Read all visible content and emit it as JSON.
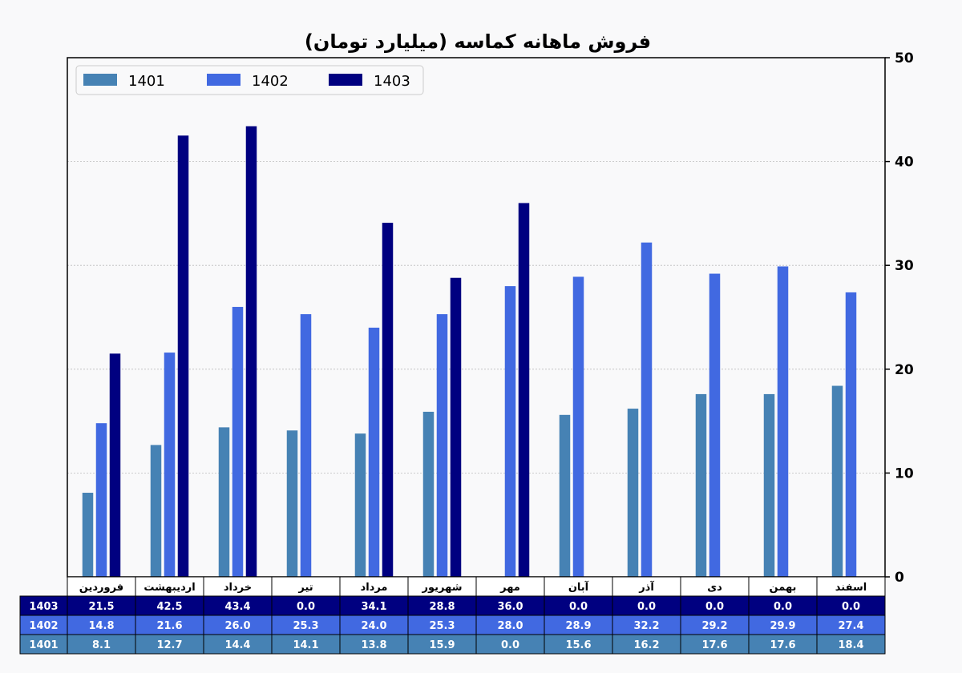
{
  "chart_data": {
    "type": "bar",
    "title": "فروش ماهانه کماسه (میلیارد تومان)",
    "categories": [
      "فروردین",
      "اردیبهشت",
      "خرداد",
      "تیر",
      "مرداد",
      "شهریور",
      "مهر",
      "آبان",
      "آذر",
      "دی",
      "بهمن",
      "اسفند"
    ],
    "series": [
      {
        "name": "1401",
        "color": "#4682b4",
        "values": [
          8.1,
          12.7,
          14.4,
          14.1,
          13.8,
          15.9,
          0.0,
          15.6,
          16.2,
          17.6,
          17.6,
          18.4
        ]
      },
      {
        "name": "1402",
        "color": "#4169e1",
        "values": [
          14.8,
          21.6,
          26.0,
          25.3,
          24.0,
          25.3,
          28.0,
          28.9,
          32.2,
          29.2,
          29.9,
          27.4
        ]
      },
      {
        "name": "1403",
        "color": "#000080",
        "values": [
          21.5,
          42.5,
          43.4,
          0.0,
          34.1,
          28.8,
          36.0,
          0.0,
          0.0,
          0.0,
          0.0,
          0.0
        ]
      }
    ],
    "ylim": [
      0,
      50
    ],
    "yticks": [
      0,
      10,
      20,
      30,
      40,
      50
    ],
    "y_axis_side": "right",
    "grid": "horizontal dotted",
    "legend_position": "top-left",
    "table_row_order": [
      "1403",
      "1402",
      "1401"
    ]
  }
}
